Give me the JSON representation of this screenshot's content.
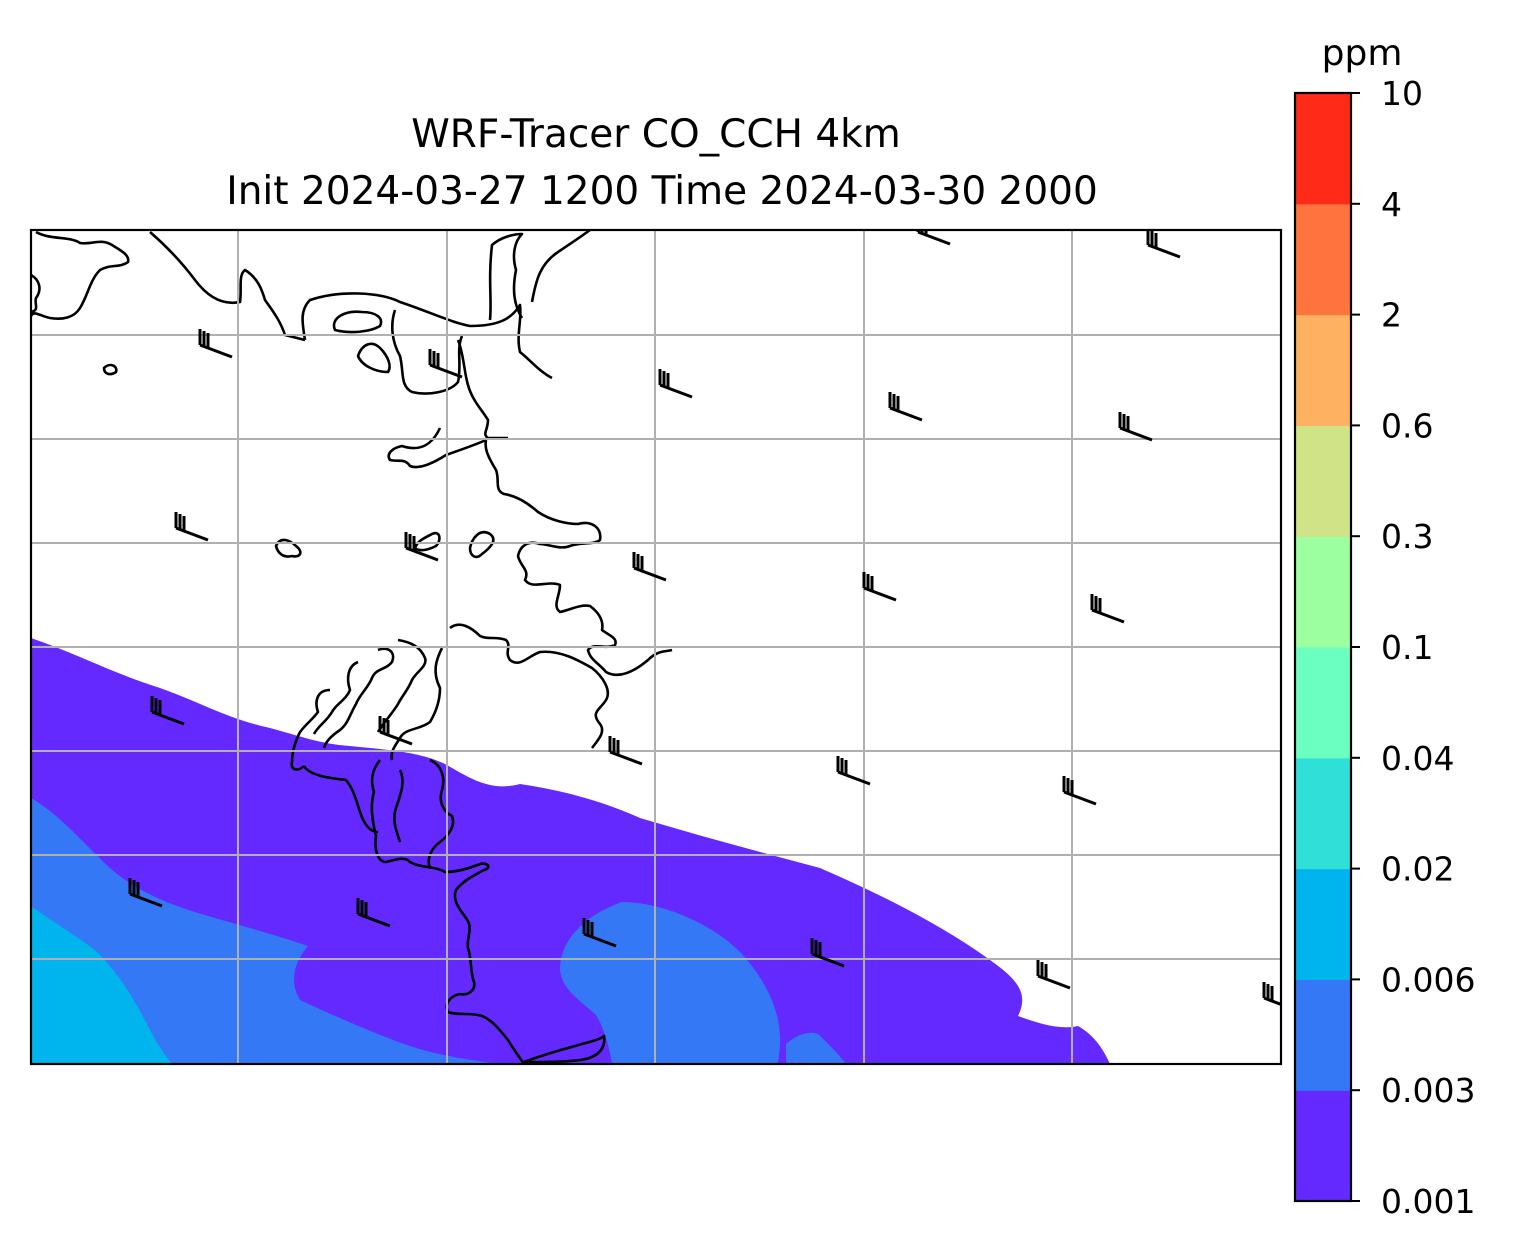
{
  "title": {
    "line1": "WRF-Tracer CO_CCH 4km",
    "line2": "Init 2024-03-27 1200 Time 2024-03-30 2000"
  },
  "colorbar": {
    "unit": "ppm",
    "levels": [
      "0.001",
      "0.003",
      "0.006",
      "0.02",
      "0.04",
      "0.1",
      "0.3",
      "0.6",
      "2",
      "4",
      "10"
    ],
    "colors": [
      "#6429ff",
      "#3478f5",
      "#00b4ed",
      "#30e0d8",
      "#6cffc2",
      "#9cffa0",
      "#d0e387",
      "#feb160",
      "#ff733f",
      "#ff2b18"
    ]
  },
  "map": {
    "field_name": "CO_CCH tracer concentration",
    "gridlines": true,
    "coastline_color": "#000000",
    "background_color": "#ffffff",
    "wind_barbs": true
  }
}
